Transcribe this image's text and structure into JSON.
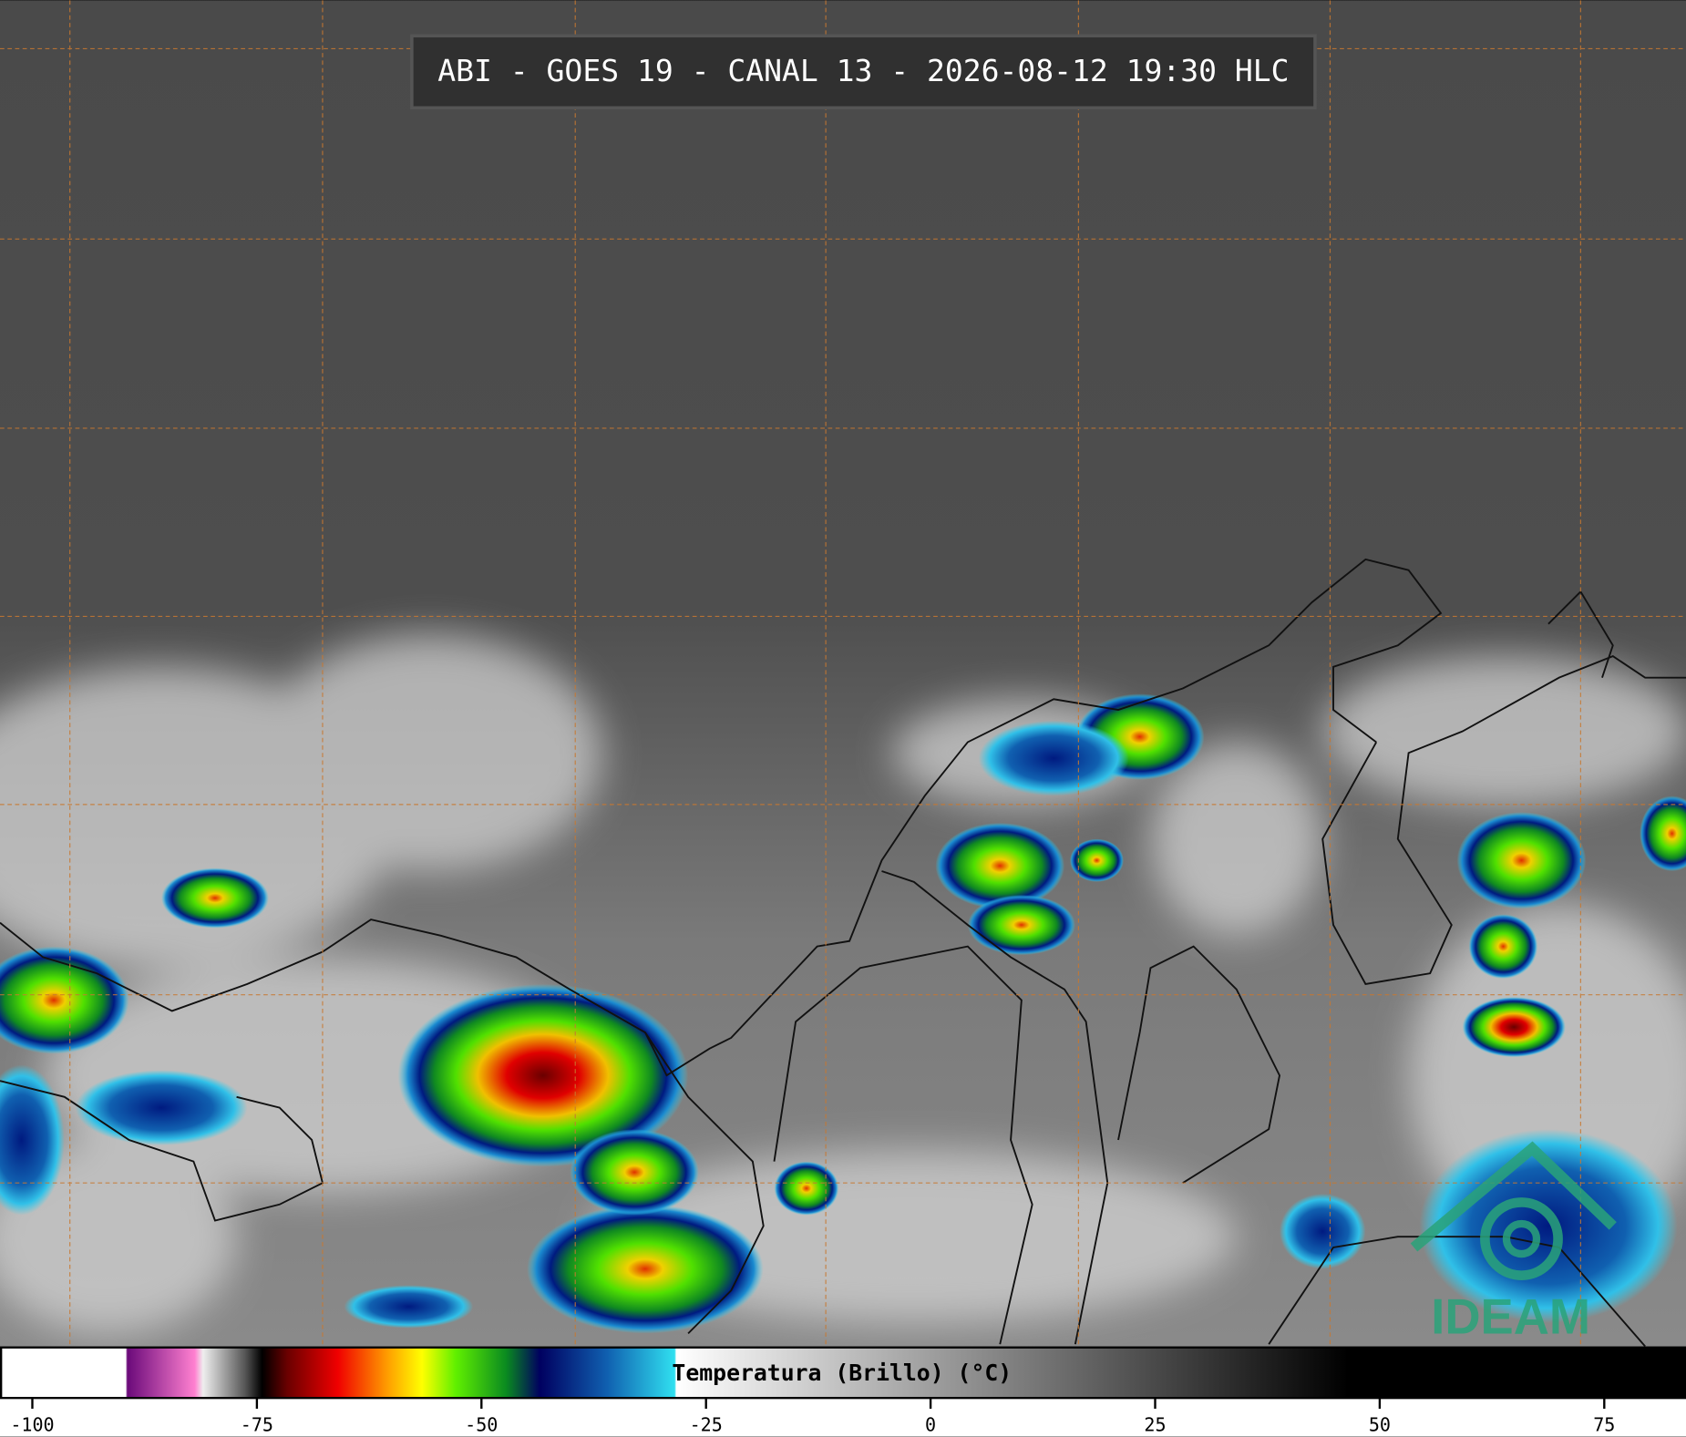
{
  "header": {
    "title": "ABI - GOES 19 - CANAL 13 - 2026-08-12 19:30 HLC"
  },
  "colorbar": {
    "label": "Temperatura (Brillo) (°C)",
    "lim": [
      -103.6,
      84.1
    ],
    "ticks": [
      -100,
      -75,
      -50,
      -25,
      0,
      25,
      50,
      75
    ]
  },
  "logo": {
    "text": "IDEAM"
  }
}
